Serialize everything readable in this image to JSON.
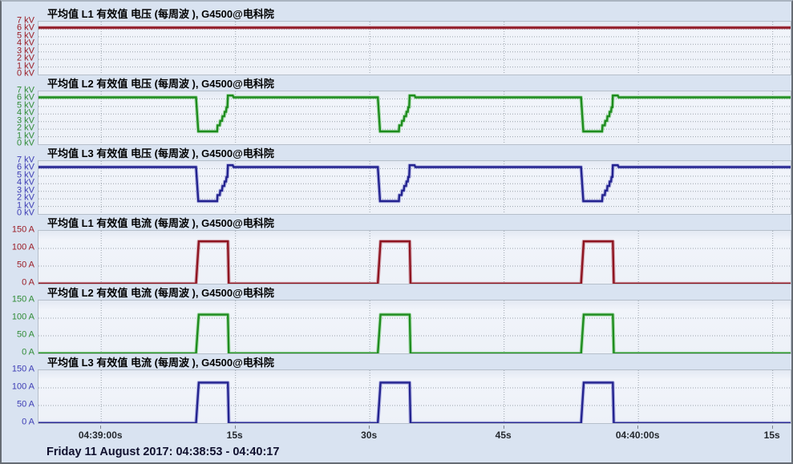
{
  "window": {
    "status_bar": "Friday 11 August 2017: 04:38:53 - 04:40:17"
  },
  "colors": {
    "page_background": "#d9e3f1",
    "plot_background": "#eef2f8",
    "plot_border": "#b6bfca",
    "gridline": "#9aa2ac",
    "l1_red": "#8e1420",
    "l2_green": "#1e8c1e",
    "l3_blue": "#23238f"
  },
  "x_axis": {
    "range_s": [
      0,
      84
    ],
    "start_time": "04:38:53",
    "end_time": "04:40:17",
    "ticks": [
      {
        "t": 7,
        "label": "04:39:00s"
      },
      {
        "t": 22,
        "label": "15s"
      },
      {
        "t": 37,
        "label": "30s"
      },
      {
        "t": 52,
        "label": "45s"
      },
      {
        "t": 67,
        "label": "04:40:00s"
      },
      {
        "t": 82,
        "label": "15s"
      }
    ]
  },
  "chart_data": [
    {
      "id": "l1-voltage",
      "type": "line",
      "title": "平均值 L1 有效值 电压 (每周波 ), G4500@电科院",
      "unit": "kV",
      "ymax": 7,
      "ytick_values": [
        7,
        6,
        5,
        4,
        3,
        2,
        1,
        0
      ],
      "ytick_labels": [
        "7 kV",
        "6 kV",
        "5 kV",
        "4 kV",
        "3 kV",
        "2 kV",
        "1 kV",
        "0 kV"
      ],
      "line_color": "#8e1420",
      "halo_color": "rgba(180,80,95,0.45)",
      "label_color": "#9a1b24",
      "points": [
        [
          0,
          6.2
        ],
        [
          84,
          6.2
        ]
      ]
    },
    {
      "id": "l2-voltage",
      "type": "line",
      "title": "平均值 L2 有效值 电压 (每周波 ), G4500@电科院",
      "unit": "kV",
      "ymax": 7,
      "ytick_values": [
        7,
        6,
        5,
        4,
        3,
        2,
        1,
        0
      ],
      "ytick_labels": [
        "7 kV",
        "6 kV",
        "5 kV",
        "4 kV",
        "3 kV",
        "2 kV",
        "1 kV",
        "0 kV"
      ],
      "line_color": "#1e8c1e",
      "halo_color": "rgba(110,200,110,0.5)",
      "label_color": "#2f8b35",
      "points": [
        [
          0,
          6.2
        ],
        [
          17.6,
          6.2
        ],
        [
          17.85,
          1.7
        ],
        [
          19.95,
          1.7
        ],
        [
          20.0,
          2.5
        ],
        [
          20.25,
          2.5
        ],
        [
          20.3,
          3.1
        ],
        [
          20.5,
          3.1
        ],
        [
          20.55,
          3.7
        ],
        [
          20.75,
          3.7
        ],
        [
          20.8,
          4.3
        ],
        [
          20.95,
          4.3
        ],
        [
          21.0,
          4.9
        ],
        [
          21.1,
          4.9
        ],
        [
          21.15,
          6.45
        ],
        [
          21.7,
          6.45
        ],
        [
          21.8,
          6.2
        ],
        [
          37.9,
          6.2
        ],
        [
          38.15,
          1.7
        ],
        [
          40.25,
          1.7
        ],
        [
          40.3,
          2.5
        ],
        [
          40.55,
          2.5
        ],
        [
          40.6,
          3.1
        ],
        [
          40.8,
          3.1
        ],
        [
          40.85,
          3.7
        ],
        [
          41.05,
          3.7
        ],
        [
          41.1,
          4.3
        ],
        [
          41.25,
          4.3
        ],
        [
          41.3,
          4.9
        ],
        [
          41.4,
          4.9
        ],
        [
          41.45,
          6.45
        ],
        [
          42.0,
          6.45
        ],
        [
          42.1,
          6.2
        ],
        [
          60.6,
          6.2
        ],
        [
          60.85,
          1.7
        ],
        [
          62.95,
          1.7
        ],
        [
          63.0,
          2.5
        ],
        [
          63.25,
          2.5
        ],
        [
          63.3,
          3.1
        ],
        [
          63.5,
          3.1
        ],
        [
          63.55,
          3.7
        ],
        [
          63.75,
          3.7
        ],
        [
          63.8,
          4.3
        ],
        [
          63.95,
          4.3
        ],
        [
          64.0,
          4.9
        ],
        [
          64.1,
          4.9
        ],
        [
          64.15,
          6.45
        ],
        [
          64.7,
          6.45
        ],
        [
          64.8,
          6.2
        ],
        [
          84,
          6.2
        ]
      ]
    },
    {
      "id": "l3-voltage",
      "type": "line",
      "title": "平均值 L3 有效值 电压 (每周波 ), G4500@电科院",
      "unit": "kV",
      "ymax": 7,
      "ytick_values": [
        7,
        6,
        5,
        4,
        3,
        2,
        1,
        0
      ],
      "ytick_labels": [
        "7 kV",
        "6 kV",
        "5 kV",
        "4 kV",
        "3 kV",
        "2 kV",
        "1 kV",
        "0 kV"
      ],
      "line_color": "#23238f",
      "halo_color": "rgba(120,120,205,0.5)",
      "label_color": "#3c3cb4",
      "points": [
        [
          0,
          6.2
        ],
        [
          17.6,
          6.2
        ],
        [
          17.85,
          1.7
        ],
        [
          19.95,
          1.7
        ],
        [
          20.0,
          2.5
        ],
        [
          20.25,
          2.5
        ],
        [
          20.3,
          3.1
        ],
        [
          20.5,
          3.1
        ],
        [
          20.55,
          3.7
        ],
        [
          20.75,
          3.7
        ],
        [
          20.8,
          4.3
        ],
        [
          20.95,
          4.3
        ],
        [
          21.0,
          4.9
        ],
        [
          21.1,
          4.9
        ],
        [
          21.15,
          6.45
        ],
        [
          21.7,
          6.45
        ],
        [
          21.8,
          6.2
        ],
        [
          37.9,
          6.2
        ],
        [
          38.15,
          1.7
        ],
        [
          40.25,
          1.7
        ],
        [
          40.3,
          2.5
        ],
        [
          40.55,
          2.5
        ],
        [
          40.6,
          3.1
        ],
        [
          40.8,
          3.1
        ],
        [
          40.85,
          3.7
        ],
        [
          41.05,
          3.7
        ],
        [
          41.1,
          4.3
        ],
        [
          41.25,
          4.3
        ],
        [
          41.3,
          4.9
        ],
        [
          41.4,
          4.9
        ],
        [
          41.45,
          6.45
        ],
        [
          42.0,
          6.45
        ],
        [
          42.1,
          6.2
        ],
        [
          60.6,
          6.2
        ],
        [
          60.85,
          1.7
        ],
        [
          62.95,
          1.7
        ],
        [
          63.0,
          2.5
        ],
        [
          63.25,
          2.5
        ],
        [
          63.3,
          3.1
        ],
        [
          63.5,
          3.1
        ],
        [
          63.55,
          3.7
        ],
        [
          63.75,
          3.7
        ],
        [
          63.8,
          4.3
        ],
        [
          63.95,
          4.3
        ],
        [
          64.0,
          4.9
        ],
        [
          64.1,
          4.9
        ],
        [
          64.15,
          6.45
        ],
        [
          64.7,
          6.45
        ],
        [
          64.8,
          6.2
        ],
        [
          84,
          6.2
        ]
      ]
    },
    {
      "id": "l1-current",
      "type": "line",
      "title": "平均值 L1 有效值 电流 (每周波 ), G4500@电科院",
      "unit": "A",
      "ymax": 150,
      "ytick_values": [
        150,
        100,
        50,
        0
      ],
      "ytick_labels": [
        "150 A",
        "100 A",
        "50 A",
        "0 A"
      ],
      "line_color": "#8e1420",
      "halo_color": "rgba(180,80,95,0.45)",
      "label_color": "#9a1b24",
      "points": [
        [
          0,
          0
        ],
        [
          17.6,
          0
        ],
        [
          17.9,
          120
        ],
        [
          21.15,
          120
        ],
        [
          21.25,
          0
        ],
        [
          37.9,
          0
        ],
        [
          38.2,
          120
        ],
        [
          41.45,
          120
        ],
        [
          41.55,
          0
        ],
        [
          60.6,
          0
        ],
        [
          60.9,
          120
        ],
        [
          64.15,
          120
        ],
        [
          64.25,
          0
        ],
        [
          84,
          0
        ]
      ]
    },
    {
      "id": "l2-current",
      "type": "line",
      "title": "平均值 L2 有效值 电流 (每周波 ), G4500@电科院",
      "unit": "A",
      "ymax": 150,
      "ytick_values": [
        150,
        100,
        50,
        0
      ],
      "ytick_labels": [
        "150 A",
        "100 A",
        "50 A",
        "0 A"
      ],
      "line_color": "#1e8c1e",
      "halo_color": "rgba(110,200,110,0.5)",
      "label_color": "#2f8b35",
      "points": [
        [
          0,
          0
        ],
        [
          17.6,
          0
        ],
        [
          17.9,
          110
        ],
        [
          21.15,
          110
        ],
        [
          21.25,
          0
        ],
        [
          37.9,
          0
        ],
        [
          38.2,
          110
        ],
        [
          41.45,
          110
        ],
        [
          41.55,
          0
        ],
        [
          60.6,
          0
        ],
        [
          60.9,
          110
        ],
        [
          64.15,
          110
        ],
        [
          64.25,
          0
        ],
        [
          84,
          0
        ]
      ]
    },
    {
      "id": "l3-current",
      "type": "line",
      "title": "平均值 L3 有效值 电流 (每周波 ), G4500@电科院",
      "unit": "A",
      "ymax": 150,
      "ytick_values": [
        150,
        100,
        50,
        0
      ],
      "ytick_labels": [
        "150 A",
        "100 A",
        "50 A",
        "0 A"
      ],
      "line_color": "#23238f",
      "halo_color": "rgba(120,120,205,0.5)",
      "label_color": "#3c3cb4",
      "points": [
        [
          0,
          0
        ],
        [
          17.6,
          0
        ],
        [
          17.9,
          115
        ],
        [
          21.15,
          115
        ],
        [
          21.25,
          0
        ],
        [
          37.9,
          0
        ],
        [
          38.2,
          115
        ],
        [
          41.45,
          115
        ],
        [
          41.55,
          0
        ],
        [
          60.6,
          0
        ],
        [
          60.9,
          115
        ],
        [
          64.15,
          115
        ],
        [
          64.25,
          0
        ],
        [
          84,
          0
        ]
      ]
    }
  ]
}
